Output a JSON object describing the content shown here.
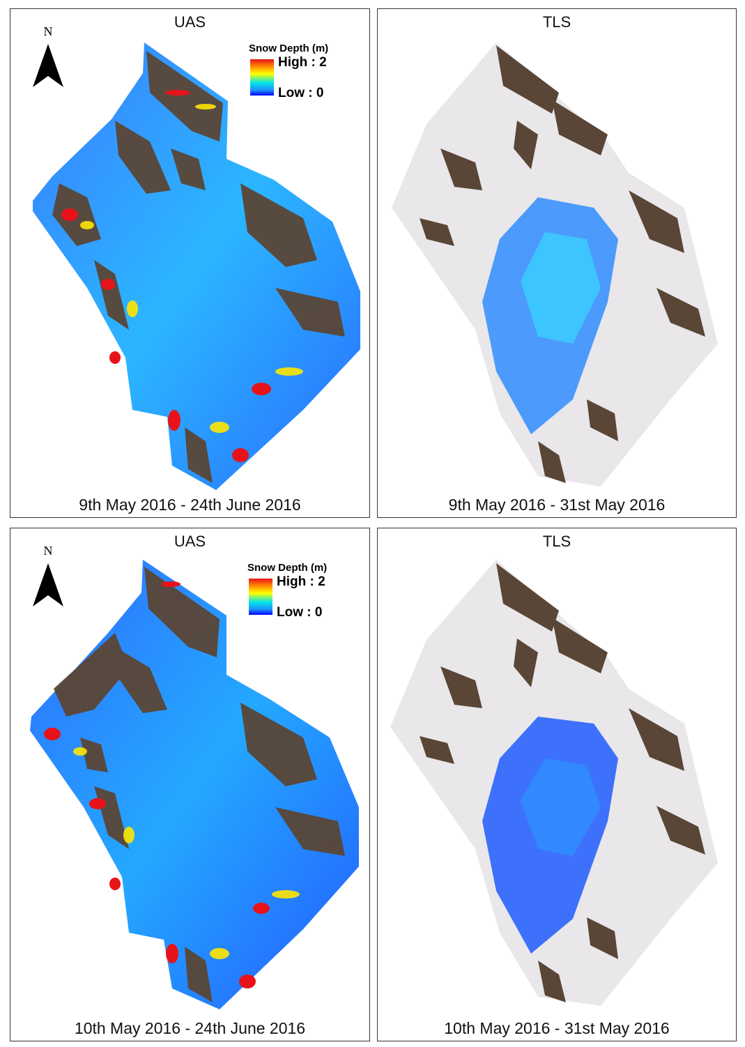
{
  "panels": {
    "top_left": {
      "title": "UAS",
      "date": "9th May 2016 - 24th June 2016"
    },
    "top_right": {
      "title": "TLS",
      "date": "9th May 2016 - 31st May 2016"
    },
    "bottom_left": {
      "title": "UAS",
      "date": "10th May 2016 - 24th June 2016"
    },
    "bottom_right": {
      "title": "TLS",
      "date": "10th May 2016 - 31st May 2016"
    }
  },
  "north_arrow": {
    "label": "N",
    "icon": "north-arrow-icon"
  },
  "legend": {
    "title": "Snow Depth (m)",
    "high": "High : 2",
    "low": "Low : 0",
    "high_value": 2,
    "low_value": 0,
    "colors": [
      "#e8131a",
      "#ff8c00",
      "#ffff00",
      "#00e6e6",
      "#1e90ff",
      "#0000ff"
    ]
  },
  "colors": {
    "terrain": "#5a4636",
    "snow": "#e9e7ea",
    "depth_low": "#1f5cff",
    "depth_mid": "#33c8ff",
    "depth_high": "#e8131a"
  }
}
